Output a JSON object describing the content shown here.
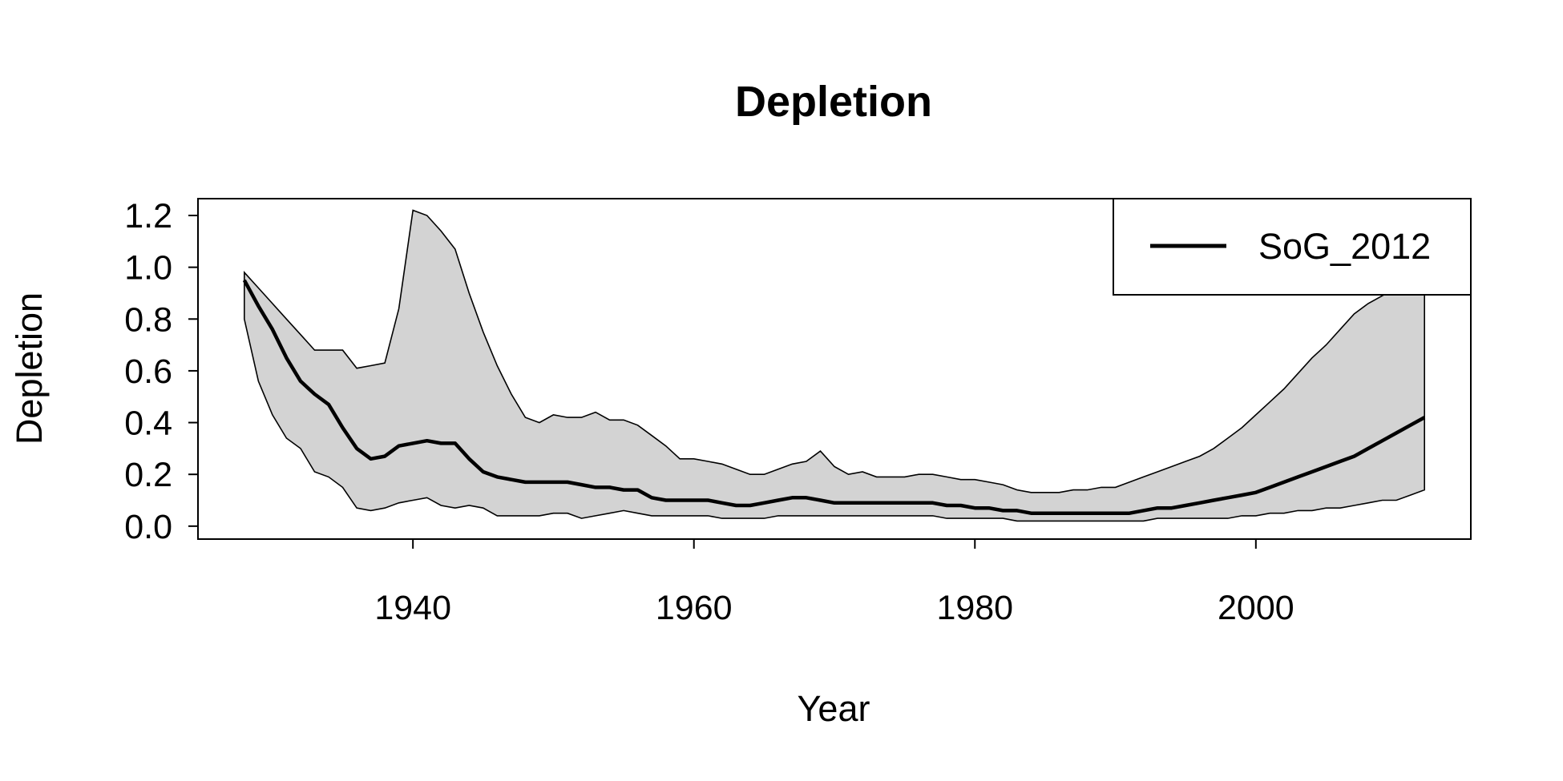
{
  "chart_data": {
    "type": "line",
    "title": "Depletion",
    "xlabel": "Year",
    "ylabel": "Depletion",
    "xlim": [
      1924.7,
      2015.3
    ],
    "ylim": [
      -0.05,
      1.265
    ],
    "x_ticks": [
      1940,
      1960,
      1980,
      2000
    ],
    "x_tick_labels": [
      "1940",
      "1960",
      "1980",
      "2000"
    ],
    "y_ticks": [
      0.0,
      0.2,
      0.4,
      0.6,
      0.8,
      1.0,
      1.2
    ],
    "y_tick_labels": [
      "0.0",
      "0.2",
      "0.4",
      "0.6",
      "0.8",
      "1.0",
      "1.2"
    ],
    "grid": false,
    "legend_position": "top-right",
    "band_color": "#d3d3d3",
    "line_color": "#000000",
    "series": [
      {
        "name": "SoG_2012",
        "x": [
          1928,
          1929,
          1930,
          1931,
          1932,
          1933,
          1934,
          1935,
          1936,
          1937,
          1938,
          1939,
          1940,
          1941,
          1942,
          1943,
          1944,
          1945,
          1946,
          1947,
          1948,
          1949,
          1950,
          1951,
          1952,
          1953,
          1954,
          1955,
          1956,
          1957,
          1958,
          1959,
          1960,
          1961,
          1962,
          1963,
          1964,
          1965,
          1966,
          1967,
          1968,
          1969,
          1970,
          1971,
          1972,
          1973,
          1974,
          1975,
          1976,
          1977,
          1978,
          1979,
          1980,
          1981,
          1982,
          1983,
          1984,
          1985,
          1986,
          1987,
          1988,
          1989,
          1990,
          1991,
          1992,
          1993,
          1994,
          1995,
          1996,
          1997,
          1998,
          1999,
          2000,
          2001,
          2002,
          2003,
          2004,
          2005,
          2006,
          2007,
          2008,
          2009,
          2010,
          2011,
          2012
        ],
        "values": [
          0.95,
          0.85,
          0.76,
          0.65,
          0.56,
          0.51,
          0.47,
          0.38,
          0.3,
          0.26,
          0.27,
          0.31,
          0.32,
          0.33,
          0.32,
          0.32,
          0.26,
          0.21,
          0.19,
          0.18,
          0.17,
          0.17,
          0.17,
          0.17,
          0.16,
          0.15,
          0.15,
          0.14,
          0.14,
          0.11,
          0.1,
          0.1,
          0.1,
          0.1,
          0.09,
          0.08,
          0.08,
          0.09,
          0.1,
          0.11,
          0.11,
          0.1,
          0.09,
          0.09,
          0.09,
          0.09,
          0.09,
          0.09,
          0.09,
          0.09,
          0.08,
          0.08,
          0.07,
          0.07,
          0.06,
          0.06,
          0.05,
          0.05,
          0.05,
          0.05,
          0.05,
          0.05,
          0.05,
          0.05,
          0.06,
          0.07,
          0.07,
          0.08,
          0.09,
          0.1,
          0.11,
          0.12,
          0.13,
          0.15,
          0.17,
          0.19,
          0.21,
          0.23,
          0.25,
          0.27,
          0.3,
          0.33,
          0.36,
          0.39,
          0.42
        ],
        "lower": [
          0.8,
          0.56,
          0.43,
          0.34,
          0.3,
          0.21,
          0.19,
          0.15,
          0.07,
          0.06,
          0.07,
          0.09,
          0.1,
          0.11,
          0.08,
          0.07,
          0.08,
          0.07,
          0.04,
          0.04,
          0.04,
          0.04,
          0.05,
          0.05,
          0.03,
          0.04,
          0.05,
          0.06,
          0.05,
          0.04,
          0.04,
          0.04,
          0.04,
          0.04,
          0.03,
          0.03,
          0.03,
          0.03,
          0.04,
          0.04,
          0.04,
          0.04,
          0.04,
          0.04,
          0.04,
          0.04,
          0.04,
          0.04,
          0.04,
          0.04,
          0.03,
          0.03,
          0.03,
          0.03,
          0.03,
          0.02,
          0.02,
          0.02,
          0.02,
          0.02,
          0.02,
          0.02,
          0.02,
          0.02,
          0.02,
          0.03,
          0.03,
          0.03,
          0.03,
          0.03,
          0.03,
          0.04,
          0.04,
          0.05,
          0.05,
          0.06,
          0.06,
          0.07,
          0.07,
          0.08,
          0.09,
          0.1,
          0.1,
          0.12,
          0.14
        ],
        "upper": [
          0.98,
          0.92,
          0.86,
          0.8,
          0.74,
          0.68,
          0.68,
          0.68,
          0.61,
          0.62,
          0.63,
          0.84,
          1.22,
          1.2,
          1.14,
          1.07,
          0.9,
          0.75,
          0.62,
          0.51,
          0.42,
          0.4,
          0.43,
          0.42,
          0.42,
          0.44,
          0.41,
          0.41,
          0.39,
          0.35,
          0.31,
          0.26,
          0.26,
          0.25,
          0.24,
          0.22,
          0.2,
          0.2,
          0.22,
          0.24,
          0.25,
          0.29,
          0.23,
          0.2,
          0.21,
          0.19,
          0.19,
          0.19,
          0.2,
          0.2,
          0.19,
          0.18,
          0.18,
          0.17,
          0.16,
          0.14,
          0.13,
          0.13,
          0.13,
          0.14,
          0.14,
          0.15,
          0.15,
          0.17,
          0.19,
          0.21,
          0.23,
          0.25,
          0.27,
          0.3,
          0.34,
          0.38,
          0.43,
          0.48,
          0.53,
          0.59,
          0.65,
          0.7,
          0.76,
          0.82,
          0.86,
          0.89,
          0.92,
          0.92,
          0.92
        ]
      }
    ]
  }
}
